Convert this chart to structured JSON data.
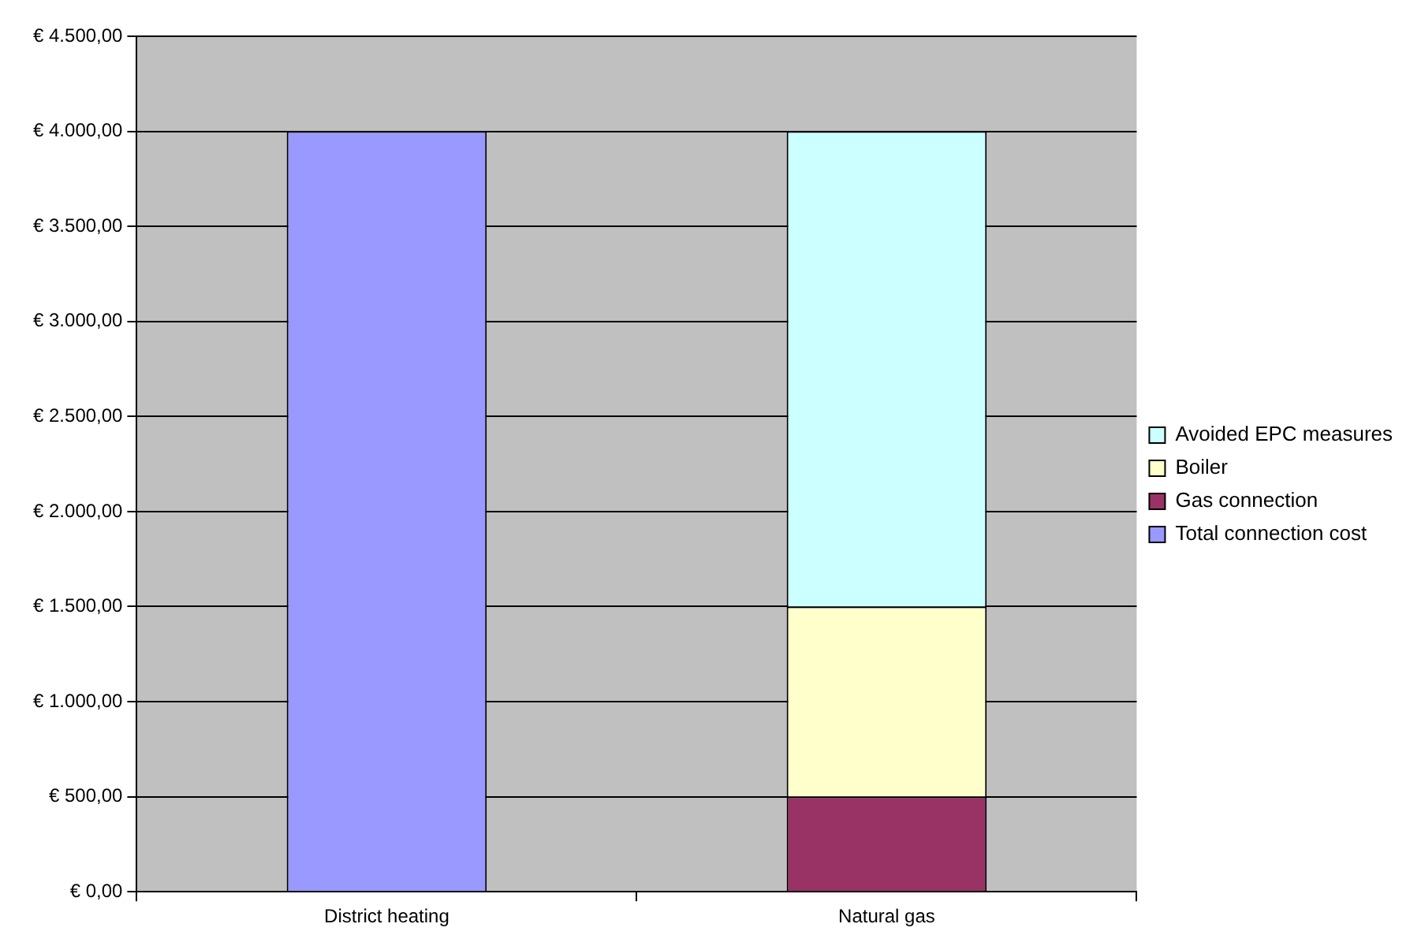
{
  "chart_data": {
    "type": "bar",
    "stacked": true,
    "categories": [
      "District heating",
      "Natural gas"
    ],
    "series": [
      {
        "name": "Total connection cost",
        "color": "#9999ff",
        "values": [
          4000,
          null
        ]
      },
      {
        "name": "Gas connection",
        "color": "#993366",
        "values": [
          null,
          500
        ]
      },
      {
        "name": "Boiler",
        "color": "#ffffcc",
        "values": [
          null,
          1000
        ]
      },
      {
        "name": "Avoided EPC measures",
        "color": "#ccffff",
        "values": [
          null,
          2500
        ]
      }
    ],
    "ylim": [
      0,
      4500
    ],
    "yticks": [
      {
        "value": 0,
        "label": "€ 0,00"
      },
      {
        "value": 500,
        "label": "€ 500,00"
      },
      {
        "value": 1000,
        "label": "€ 1.000,00"
      },
      {
        "value": 1500,
        "label": "€ 1.500,00"
      },
      {
        "value": 2000,
        "label": "€ 2.000,00"
      },
      {
        "value": 2500,
        "label": "€ 2.500,00"
      },
      {
        "value": 3000,
        "label": "€ 3.000,00"
      },
      {
        "value": 3500,
        "label": "€ 3.500,00"
      },
      {
        "value": 4000,
        "label": "€ 4.000,00"
      },
      {
        "value": 4500,
        "label": "€ 4.500,00"
      }
    ],
    "grid": "y",
    "legend": "right"
  }
}
